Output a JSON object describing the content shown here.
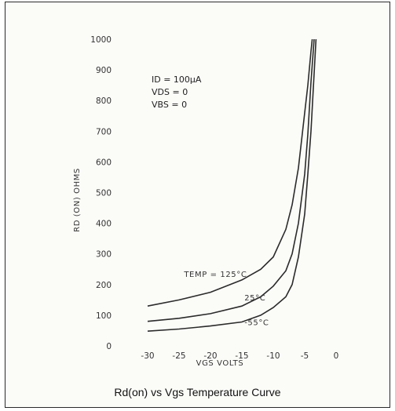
{
  "chart_data": {
    "type": "line",
    "title": "Rd(on) vs Vgs Temperature Curve",
    "ylabel": "RD (ON) OHMS",
    "xlabel": "VGS VOLTS",
    "xlim": [
      -30,
      0
    ],
    "ylim": [
      0,
      1000
    ],
    "x_ticks": [
      "-30",
      "-25",
      "-20",
      "-15",
      "-10",
      "-5",
      "0"
    ],
    "y_ticks": [
      "0",
      "100",
      "200",
      "300",
      "400",
      "500",
      "600",
      "700",
      "800",
      "900",
      "1000"
    ],
    "grid": false,
    "conditions": [
      "ID = 100µA",
      "VDS = 0",
      "VBS = 0"
    ],
    "series": [
      {
        "name": "TEMP = 125°C",
        "label": "TEMP = 125°C",
        "x": [
          -30,
          -25,
          -20,
          -15,
          -12,
          -10,
          -8,
          -7,
          -6,
          -5,
          -4.5,
          -4,
          -3.8
        ],
        "y": [
          130,
          150,
          175,
          215,
          250,
          290,
          380,
          460,
          580,
          760,
          850,
          960,
          1000
        ]
      },
      {
        "name": "25°C",
        "label": "25°C",
        "x": [
          -30,
          -25,
          -20,
          -15,
          -12,
          -10,
          -8,
          -7,
          -6,
          -5,
          -4.5,
          -4,
          -3.5
        ],
        "y": [
          80,
          90,
          105,
          130,
          160,
          195,
          245,
          300,
          400,
          560,
          690,
          860,
          1000
        ]
      },
      {
        "name": "-55°C",
        "label": "-55°C",
        "x": [
          -30,
          -25,
          -20,
          -15,
          -12,
          -10,
          -8,
          -7,
          -6,
          -5,
          -4.5,
          -4,
          -3.2
        ],
        "y": [
          48,
          55,
          65,
          78,
          100,
          125,
          160,
          200,
          290,
          430,
          560,
          700,
          1000
        ]
      }
    ]
  }
}
